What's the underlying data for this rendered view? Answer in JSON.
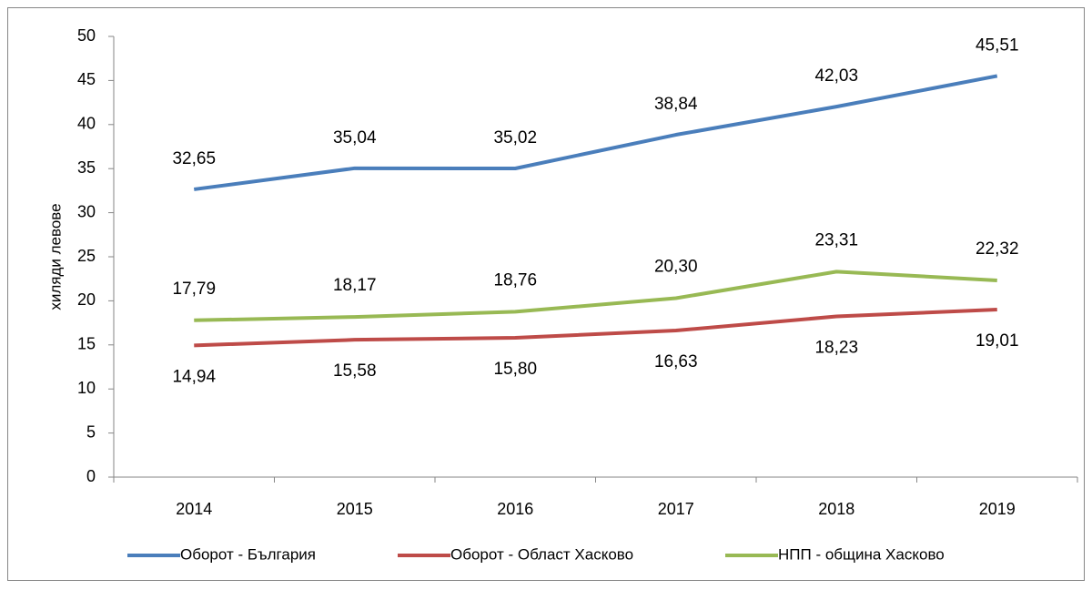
{
  "chart_data": {
    "type": "line",
    "y_label": "хиляди левове",
    "categories": [
      "2014",
      "2015",
      "2016",
      "2017",
      "2018",
      "2019"
    ],
    "series": [
      {
        "name": "Оборот - България",
        "color": "#4a7ebb",
        "values": [
          32.65,
          35.04,
          35.02,
          38.84,
          42.03,
          45.51
        ],
        "value_labels": [
          "32,65",
          "35,04",
          "35,02",
          "38,84",
          "42,03",
          "45,51"
        ]
      },
      {
        "name": "Оборот - Област Хасково",
        "color": "#be4b48",
        "values": [
          14.94,
          15.58,
          15.8,
          16.63,
          18.23,
          19.01
        ],
        "value_labels": [
          "14,94",
          "15,58",
          "15,80",
          "16,63",
          "18,23",
          "19,01"
        ]
      },
      {
        "name": "НПП - община Хасково",
        "color": "#98b954",
        "values": [
          17.79,
          18.17,
          18.76,
          20.3,
          23.31,
          22.32
        ],
        "value_labels": [
          "17,79",
          "18,17",
          "18,76",
          "20,30",
          "23,31",
          "22,32"
        ]
      }
    ],
    "ylim": [
      0,
      50
    ],
    "yticks": [
      0,
      5,
      10,
      15,
      20,
      25,
      30,
      35,
      40,
      45,
      50
    ],
    "grid": false,
    "legend": "bottom"
  }
}
